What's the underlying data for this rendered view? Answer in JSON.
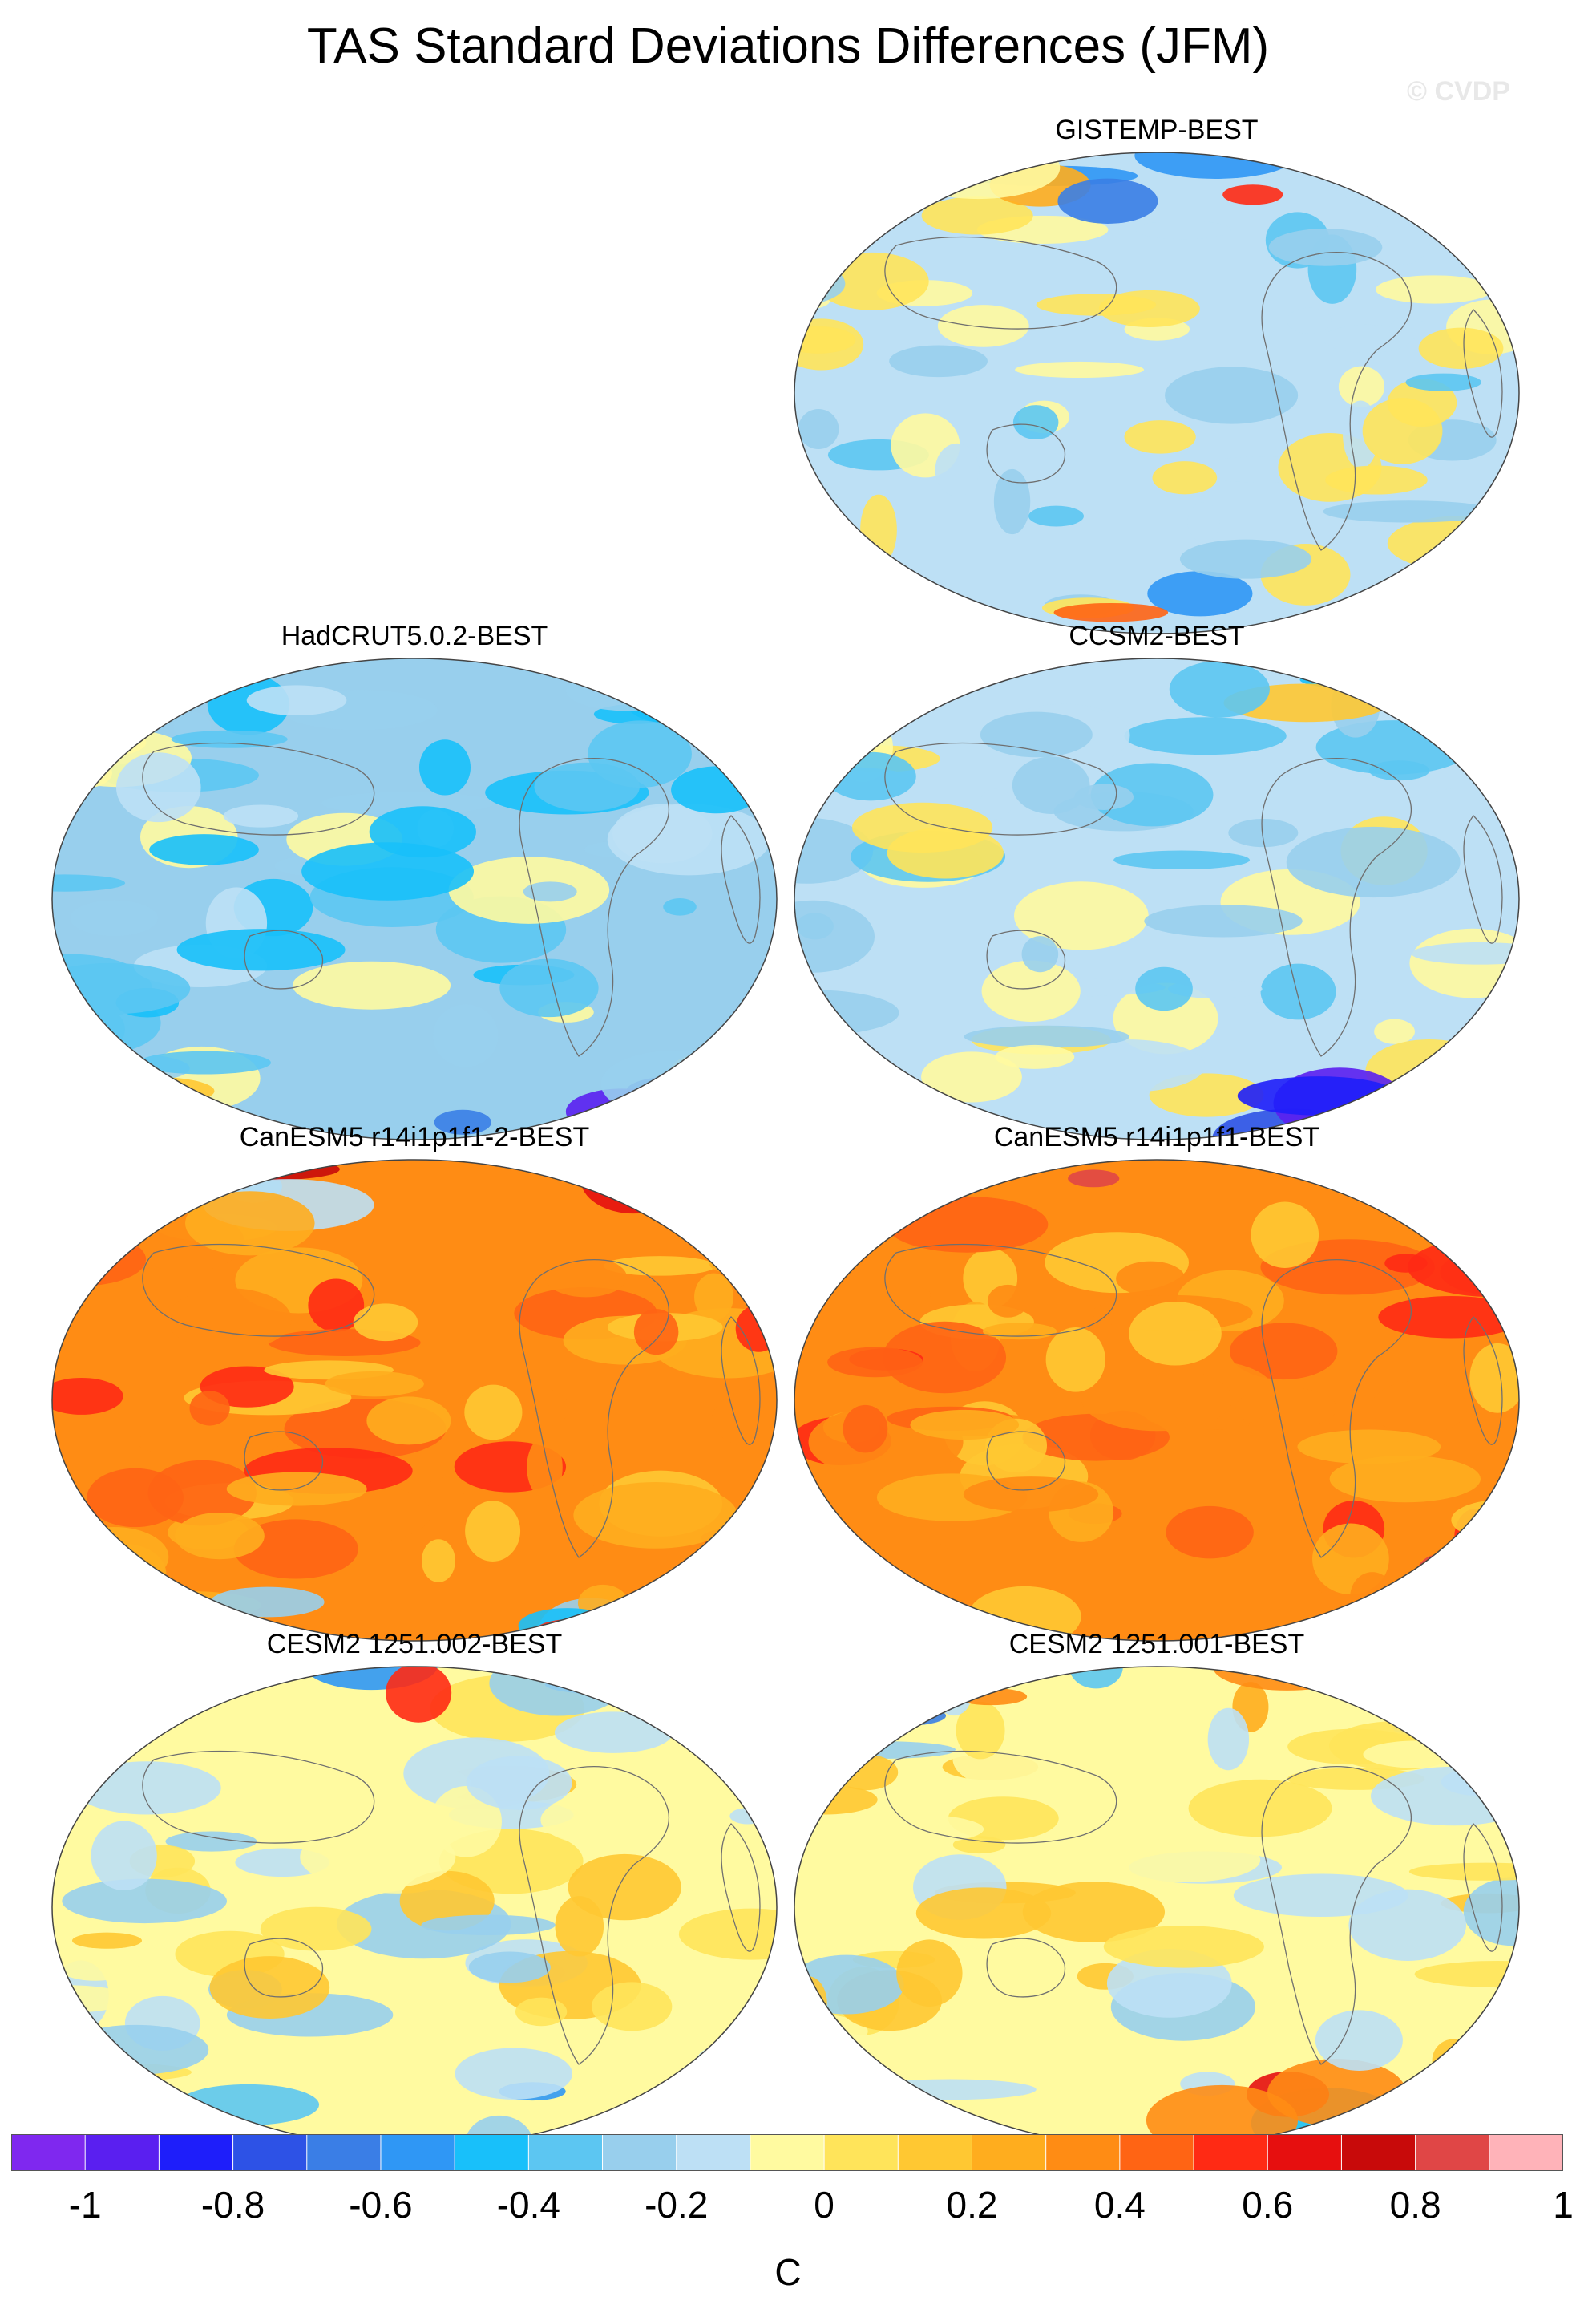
{
  "title": "TAS Standard Deviations Differences (JFM)",
  "watermark": "© CVDP",
  "panels": [
    {
      "label": "GISTEMP-BEST",
      "anomaly": -0.05
    },
    {
      "label": "HadCRUT5.0.2-BEST",
      "anomaly": -0.15
    },
    {
      "label": "CCSM2-BEST",
      "anomaly": -0.05
    },
    {
      "label": "CanESM5 r14i1p1f1-2-BEST",
      "anomaly": 0.45
    },
    {
      "label": "CanESM5 r14i1p1f1-BEST",
      "anomaly": 0.45
    },
    {
      "label": "CESM2 1251.002-BEST",
      "anomaly": 0.05
    },
    {
      "label": "CESM2 1251.001-BEST",
      "anomaly": 0.08
    }
  ],
  "colorbar": {
    "colors": [
      "#7f28ef",
      "#5a1ff0",
      "#1e1efa",
      "#2d52e6",
      "#3a7ee6",
      "#2f97f5",
      "#18c0fa",
      "#5cc6f2",
      "#98cfed",
      "#bde0f5",
      "#fffaa0",
      "#ffe45a",
      "#ffc832",
      "#ffad1e",
      "#ff8c14",
      "#ff6414",
      "#ff2a14",
      "#e60f0f",
      "#c80a0a",
      "#e04646",
      "#ffb3b9"
    ],
    "tick_labels": [
      "-1",
      "-0.8",
      "-0.6",
      "-0.4",
      "-0.2",
      "0",
      "0.2",
      "0.4",
      "0.6",
      "0.8",
      "1"
    ],
    "units": "C"
  }
}
